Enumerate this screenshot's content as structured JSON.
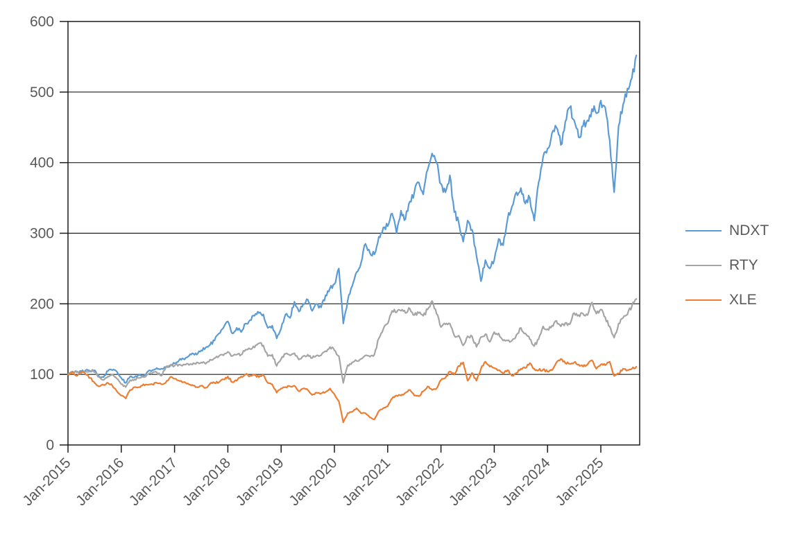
{
  "chart_data": {
    "type": "line",
    "title": "",
    "x_axis": {
      "tick_labels": [
        "Jan-2015",
        "Jan-2016",
        "Jan-2017",
        "Jan-2018",
        "Jan-2019",
        "Jan-2020",
        "Jan-2021",
        "Jan-2022",
        "Jan-2023",
        "Jan-2024",
        "Jan-2025"
      ],
      "start_month": "2015-01",
      "frequency": "monthly",
      "months_per_tick": 12
    },
    "y_axis": {
      "min": 0,
      "max": 600,
      "step": 100,
      "tick_labels": [
        "0",
        "100",
        "200",
        "300",
        "400",
        "500",
        "600"
      ]
    },
    "grid": "horizontal-black",
    "legend_position": "right",
    "axis_text_color": "#595959",
    "line_color": "#1a1a1a",
    "series": [
      {
        "name": "NDXT",
        "color": "#5B9BD5",
        "values": [
          100,
          104,
          103,
          104,
          106,
          104,
          106,
          97,
          96,
          105,
          106,
          104,
          95,
          88,
          97,
          96,
          99,
          97,
          104,
          106,
          109,
          108,
          110,
          112,
          116,
          120,
          122,
          125,
          130,
          128,
          134,
          138,
          142,
          148,
          158,
          166,
          175,
          158,
          166,
          160,
          172,
          177,
          183,
          187,
          185,
          166,
          169,
          151,
          165,
          185,
          180,
          203,
          189,
          200,
          206,
          190,
          200,
          195,
          212,
          222,
          228,
          250,
          172,
          205,
          225,
          245,
          258,
          285,
          272,
          270,
          295,
          308,
          310,
          328,
          300,
          332,
          320,
          345,
          358,
          372,
          355,
          390,
          413,
          400,
          370,
          358,
          382,
          330,
          315,
          288,
          318,
          305,
          268,
          232,
          262,
          250,
          262,
          292,
          283,
          320,
          338,
          358,
          364,
          342,
          350,
          318,
          372,
          408,
          420,
          442,
          450,
          425,
          458,
          478,
          460,
          436,
          452,
          460,
          476,
          470,
          488,
          478,
          432,
          358,
          452,
          482,
          505,
          520,
          552
        ]
      },
      {
        "name": "RTY",
        "color": "#A5A5A5",
        "values": [
          100,
          103,
          104,
          102,
          104,
          105,
          103,
          96,
          92,
          97,
          100,
          94,
          86,
          82,
          92,
          93,
          95,
          96,
          100,
          102,
          103,
          98,
          109,
          113,
          112,
          114,
          114,
          115,
          114,
          117,
          117,
          115,
          121,
          123,
          126,
          127,
          132,
          126,
          128,
          128,
          135,
          136,
          138,
          144,
          141,
          126,
          128,
          112,
          122,
          129,
          127,
          130,
          121,
          126,
          128,
          123,
          127,
          127,
          133,
          139,
          134,
          126,
          88,
          113,
          117,
          119,
          122,
          127,
          125,
          128,
          151,
          164,
          172,
          190,
          188,
          190,
          187,
          193,
          184,
          187,
          183,
          192,
          204,
          186,
          167,
          171,
          172,
          155,
          155,
          141,
          154,
          154,
          139,
          153,
          157,
          146,
          160,
          158,
          148,
          148,
          148,
          156,
          166,
          158,
          150,
          140,
          150,
          168,
          164,
          169,
          176,
          168,
          173,
          171,
          187,
          184,
          186,
          184,
          202,
          186,
          192,
          181,
          168,
          152,
          172,
          180,
          185,
          197,
          207
        ]
      },
      {
        "name": "XLE",
        "color": "#ED7D31",
        "values": [
          100,
          103,
          98,
          104,
          100,
          95,
          88,
          83,
          85,
          88,
          84,
          76,
          70,
          66,
          78,
          82,
          82,
          86,
          85,
          86,
          88,
          86,
          88,
          96,
          94,
          91,
          89,
          87,
          85,
          82,
          84,
          81,
          87,
          88,
          89,
          93,
          97,
          89,
          91,
          97,
          100,
          98,
          99,
          96,
          99,
          88,
          86,
          74,
          80,
          82,
          83,
          84,
          76,
          80,
          78,
          71,
          74,
          73,
          75,
          80,
          72,
          62,
          32,
          45,
          47,
          52,
          45,
          45,
          39,
          36,
          48,
          52,
          55,
          66,
          70,
          70,
          74,
          78,
          70,
          69,
          76,
          83,
          78,
          80,
          92,
          95,
          104,
          100,
          112,
          117,
          91,
          102,
          91,
          108,
          118,
          111,
          109,
          106,
          101,
          106,
          98,
          102,
          108,
          109,
          116,
          108,
          106,
          107,
          104,
          106,
          117,
          122,
          116,
          115,
          117,
          114,
          111,
          114,
          120,
          108,
          114,
          113,
          118,
          98,
          101,
          108,
          106,
          108,
          111
        ]
      }
    ]
  }
}
